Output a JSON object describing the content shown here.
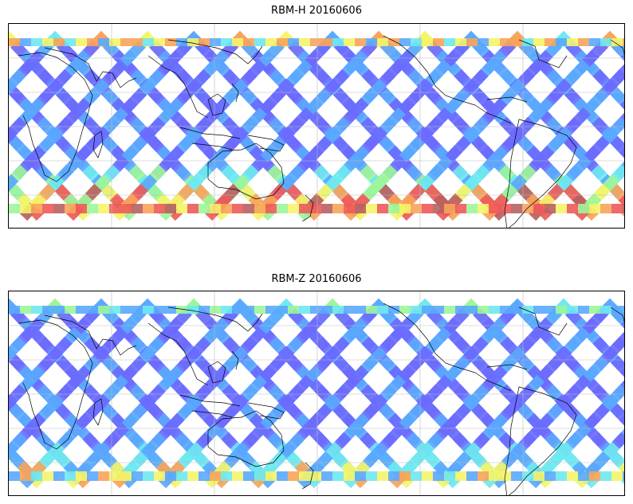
{
  "panels": [
    {
      "title": "RBM-H 20160606",
      "variant": "high"
    },
    {
      "title": "RBM-Z 20160606",
      "variant": "low"
    }
  ],
  "colors": {
    "track_base": "#6b6bff",
    "track_mid": "#5aa8ff",
    "cyan": "#6fe8f0",
    "green": "#9cf59a",
    "yellow": "#f4f46a",
    "orange": "#f7a45a",
    "red": "#ee5a5a",
    "dark_red": "#b86060",
    "coast": "#000000",
    "grid": "#bbbbbb"
  }
}
